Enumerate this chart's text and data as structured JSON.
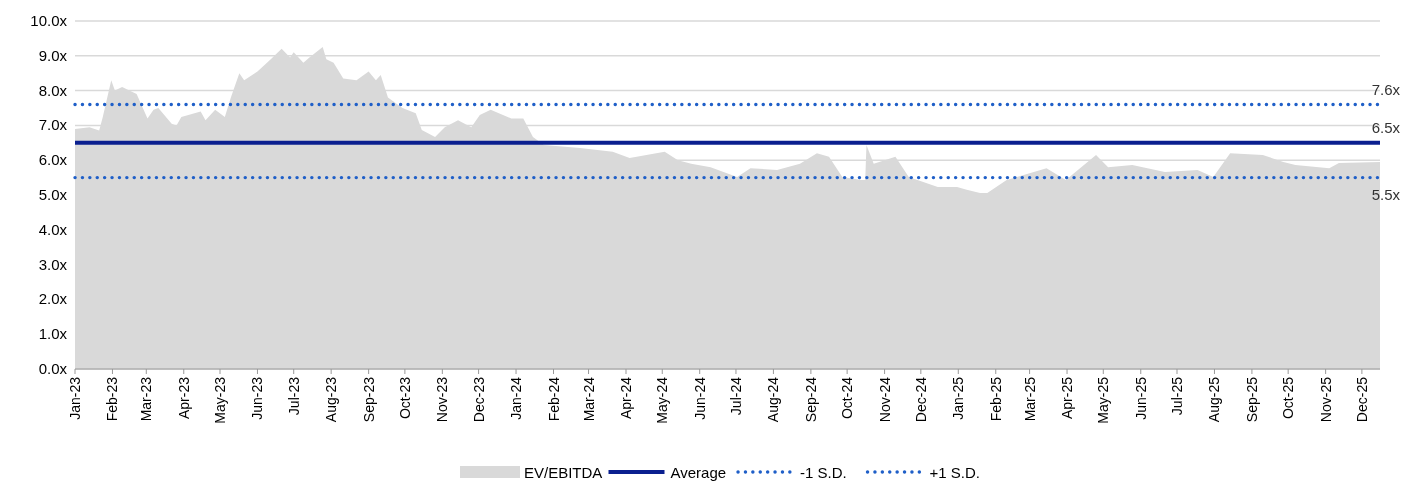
{
  "chart_data": {
    "type": "area",
    "xlim": [
      "2023-01-01",
      "2025-12-16"
    ],
    "xticks": [
      {
        "value": "2023-01-01",
        "label": "Jan-23"
      },
      {
        "value": "2023-02-01",
        "label": "Feb-23"
      },
      {
        "value": "2023-03-01",
        "label": "Mar-23"
      },
      {
        "value": "2023-04-01",
        "label": "Apr-23"
      },
      {
        "value": "2023-05-01",
        "label": "May-23"
      },
      {
        "value": "2023-06-01",
        "label": "Jun-23"
      },
      {
        "value": "2023-07-01",
        "label": "Jul-23"
      },
      {
        "value": "2023-08-01",
        "label": "Aug-23"
      },
      {
        "value": "2023-09-01",
        "label": "Sep-23"
      },
      {
        "value": "2023-10-01",
        "label": "Oct-23"
      },
      {
        "value": "2023-11-01",
        "label": "Nov-23"
      },
      {
        "value": "2023-12-01",
        "label": "Dec-23"
      },
      {
        "value": "2024-01-01",
        "label": "Jan-24"
      },
      {
        "value": "2024-02-01",
        "label": "Feb-24"
      },
      {
        "value": "2024-03-01",
        "label": "Mar-24"
      },
      {
        "value": "2024-04-01",
        "label": "Apr-24"
      },
      {
        "value": "2024-05-01",
        "label": "May-24"
      },
      {
        "value": "2024-06-01",
        "label": "Jun-24"
      },
      {
        "value": "2024-07-01",
        "label": "Jul-24"
      },
      {
        "value": "2024-08-01",
        "label": "Aug-24"
      },
      {
        "value": "2024-09-01",
        "label": "Sep-24"
      },
      {
        "value": "2024-10-01",
        "label": "Oct-24"
      },
      {
        "value": "2024-11-01",
        "label": "Nov-24"
      },
      {
        "value": "2024-12-01",
        "label": "Dec-24"
      },
      {
        "value": "2025-01-01",
        "label": "Jan-25"
      },
      {
        "value": "2025-02-01",
        "label": "Feb-25"
      },
      {
        "value": "2025-03-01",
        "label": "Mar-25"
      },
      {
        "value": "2025-04-01",
        "label": "Apr-25"
      },
      {
        "value": "2025-05-01",
        "label": "May-25"
      },
      {
        "value": "2025-06-01",
        "label": "Jun-25"
      },
      {
        "value": "2025-07-01",
        "label": "Jul-25"
      },
      {
        "value": "2025-08-01",
        "label": "Aug-25"
      },
      {
        "value": "2025-09-01",
        "label": "Sep-25"
      },
      {
        "value": "2025-10-01",
        "label": "Oct-25"
      },
      {
        "value": "2025-11-01",
        "label": "Nov-25"
      },
      {
        "value": "2025-12-01",
        "label": "Dec-25"
      }
    ],
    "ylim": [
      0,
      10
    ],
    "yticks": [
      {
        "value": 0,
        "label": "0.0x"
      },
      {
        "value": 1,
        "label": "1.0x"
      },
      {
        "value": 2,
        "label": "2.0x"
      },
      {
        "value": 3,
        "label": "3.0x"
      },
      {
        "value": 4,
        "label": "4.0x"
      },
      {
        "value": 5,
        "label": "5.0x"
      },
      {
        "value": 6,
        "label": "6.0x"
      },
      {
        "value": 7,
        "label": "7.0x"
      },
      {
        "value": 8,
        "label": "8.0x"
      },
      {
        "value": 9,
        "label": "9.0x"
      },
      {
        "value": 10,
        "label": "10.0x"
      }
    ],
    "grid": "y",
    "legend": "bottom",
    "series": [
      {
        "name": "EV/EBITDA",
        "type": "area",
        "color": "#d9d9d9",
        "x": [
          "2023-01-01",
          "2023-01-13",
          "2023-01-21",
          "2023-01-24",
          "2023-01-31",
          "2023-02-03",
          "2023-02-09",
          "2023-02-21",
          "2023-03-02",
          "2023-03-07",
          "2023-03-11",
          "2023-03-22",
          "2023-03-26",
          "2023-03-30",
          "2023-04-15",
          "2023-04-19",
          "2023-04-27",
          "2023-05-05",
          "2023-05-10",
          "2023-05-17",
          "2023-05-21",
          "2023-06-01",
          "2023-06-12",
          "2023-06-21",
          "2023-06-28",
          "2023-07-01",
          "2023-07-09",
          "2023-07-14",
          "2023-07-25",
          "2023-07-28",
          "2023-08-03",
          "2023-08-11",
          "2023-08-22",
          "2023-09-01",
          "2023-09-07",
          "2023-09-11",
          "2023-09-17",
          "2023-09-29",
          "2023-10-10",
          "2023-10-15",
          "2023-10-26",
          "2023-11-03",
          "2023-11-14",
          "2023-11-25",
          "2023-12-02",
          "2023-12-11",
          "2023-12-28",
          "2024-01-07",
          "2024-01-15",
          "2024-01-24",
          "2024-02-23",
          "2024-03-21",
          "2024-04-04",
          "2024-05-03",
          "2024-05-14",
          "2024-05-25",
          "2024-06-10",
          "2024-07-02",
          "2024-07-13",
          "2024-08-04",
          "2024-08-23",
          "2024-09-06",
          "2024-09-16",
          "2024-09-27",
          "2024-10-13",
          "2024-10-16",
          "2024-10-17",
          "2024-10-23",
          "2024-11-10",
          "2024-11-21",
          "2024-12-15",
          "2024-12-31",
          "2025-01-08",
          "2025-01-19",
          "2025-01-25",
          "2025-02-10",
          "2025-03-15",
          "2025-03-31",
          "2025-04-25",
          "2025-05-05",
          "2025-05-25",
          "2025-06-21",
          "2025-07-18",
          "2025-07-31",
          "2025-08-14",
          "2025-09-10",
          "2025-09-27",
          "2025-10-07",
          "2025-11-04",
          "2025-11-12",
          "2025-12-16"
        ],
        "values": [
          6.9,
          6.95,
          6.85,
          7.24,
          8.3,
          8.0,
          8.1,
          7.9,
          7.2,
          7.45,
          7.5,
          7.05,
          7.0,
          7.24,
          7.4,
          7.15,
          7.45,
          7.24,
          7.8,
          8.5,
          8.3,
          8.55,
          8.9,
          9.2,
          8.95,
          9.1,
          8.8,
          8.95,
          9.25,
          8.9,
          8.8,
          8.35,
          8.3,
          8.55,
          8.3,
          8.45,
          7.8,
          7.5,
          7.35,
          6.87,
          6.67,
          6.95,
          7.15,
          6.95,
          7.3,
          7.45,
          7.2,
          7.2,
          6.67,
          6.44,
          6.35,
          6.24,
          6.06,
          6.24,
          6.0,
          5.9,
          5.8,
          5.52,
          5.77,
          5.72,
          5.9,
          6.2,
          6.1,
          5.52,
          5.43,
          5.43,
          6.44,
          5.9,
          6.1,
          5.52,
          5.23,
          5.23,
          5.15,
          5.06,
          5.06,
          5.43,
          5.77,
          5.43,
          6.15,
          5.8,
          5.86,
          5.66,
          5.72,
          5.52,
          6.2,
          6.15,
          5.95,
          5.86,
          5.77,
          5.92,
          5.95
        ]
      },
      {
        "name": "Average",
        "type": "line",
        "color": "#0a1f8f",
        "line_style": "solid",
        "x": [
          "2023-01-01",
          "2025-12-16"
        ],
        "values": [
          6.5,
          6.5
        ],
        "value_labels": [
          null,
          "6.5x"
        ]
      },
      {
        "name": "-1 S.D.",
        "type": "line",
        "color": "#1f5fc8",
        "line_style": "dotted",
        "x": [
          "2023-01-01",
          "2025-12-16"
        ],
        "values": [
          5.5,
          5.5
        ],
        "value_labels": [
          null,
          "5.5x"
        ]
      },
      {
        "name": "+1 S.D.",
        "type": "line",
        "color": "#1f5fc8",
        "line_style": "dotted",
        "x": [
          "2023-01-01",
          "2025-12-16"
        ],
        "values": [
          7.6,
          7.6
        ],
        "value_labels": [
          null,
          "7.6x"
        ]
      }
    ]
  }
}
